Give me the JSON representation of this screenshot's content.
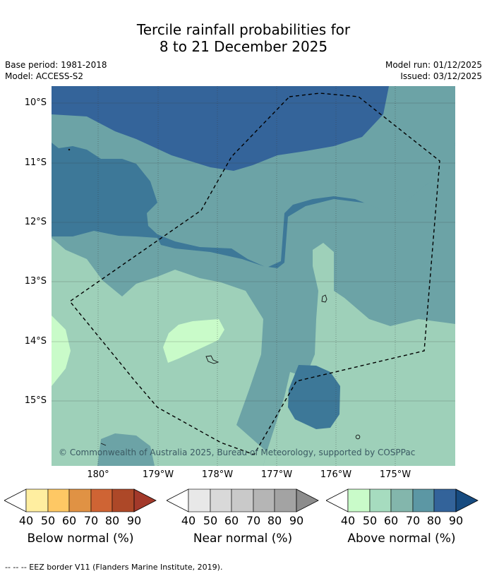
{
  "title": {
    "line1": "Tercile rainfall probabilities for",
    "line2": "8 to 21 December 2025"
  },
  "meta": {
    "base_period": "Base period: 1981-2018",
    "model": "Model: ACCESS-S2",
    "model_run": "Model run: 01/12/2025",
    "issued": "Issued: 03/12/2025"
  },
  "map": {
    "lat_labels": [
      "10°S",
      "11°S",
      "12°S",
      "13°S",
      "14°S",
      "15°S"
    ],
    "lon_labels": [
      "180°",
      "179°W",
      "178°W",
      "177°W",
      "176°W",
      "175°W"
    ],
    "copyright": "© Commonwealth of Australia 2025, Bureau of Meteorology, supported by COSPPac",
    "colors": {
      "a80": "#34649a",
      "a70": "#3d7898",
      "a60": "#6ca3a6",
      "a50": "#9ed0b9",
      "a40": "#c9fbc9"
    }
  },
  "legends": [
    {
      "title": "Below normal (%)",
      "ticks": [
        "40",
        "50",
        "60",
        "70",
        "80",
        "90"
      ],
      "colors": [
        "#ffeea0",
        "#fec864",
        "#e09244",
        "#cf6434",
        "#ad4828",
        "#a3392a"
      ]
    },
    {
      "title": "Near normal (%)",
      "ticks": [
        "40",
        "50",
        "60",
        "70",
        "80",
        "90"
      ],
      "colors": [
        "#e8e8e8",
        "#d9d9d9",
        "#c9c9c9",
        "#b5b5b5",
        "#a3a3a3",
        "#8c8c8c"
      ]
    },
    {
      "title": "Above normal (%)",
      "ticks": [
        "40",
        "50",
        "60",
        "70",
        "80",
        "90"
      ],
      "colors": [
        "#c9fbc9",
        "#a6dcbf",
        "#83b6ac",
        "#5c97a4",
        "#33639a",
        "#174b80"
      ]
    }
  ],
  "footer": "--  --  -- EEZ border V11 (Flanders Marine Institute, 2019)."
}
